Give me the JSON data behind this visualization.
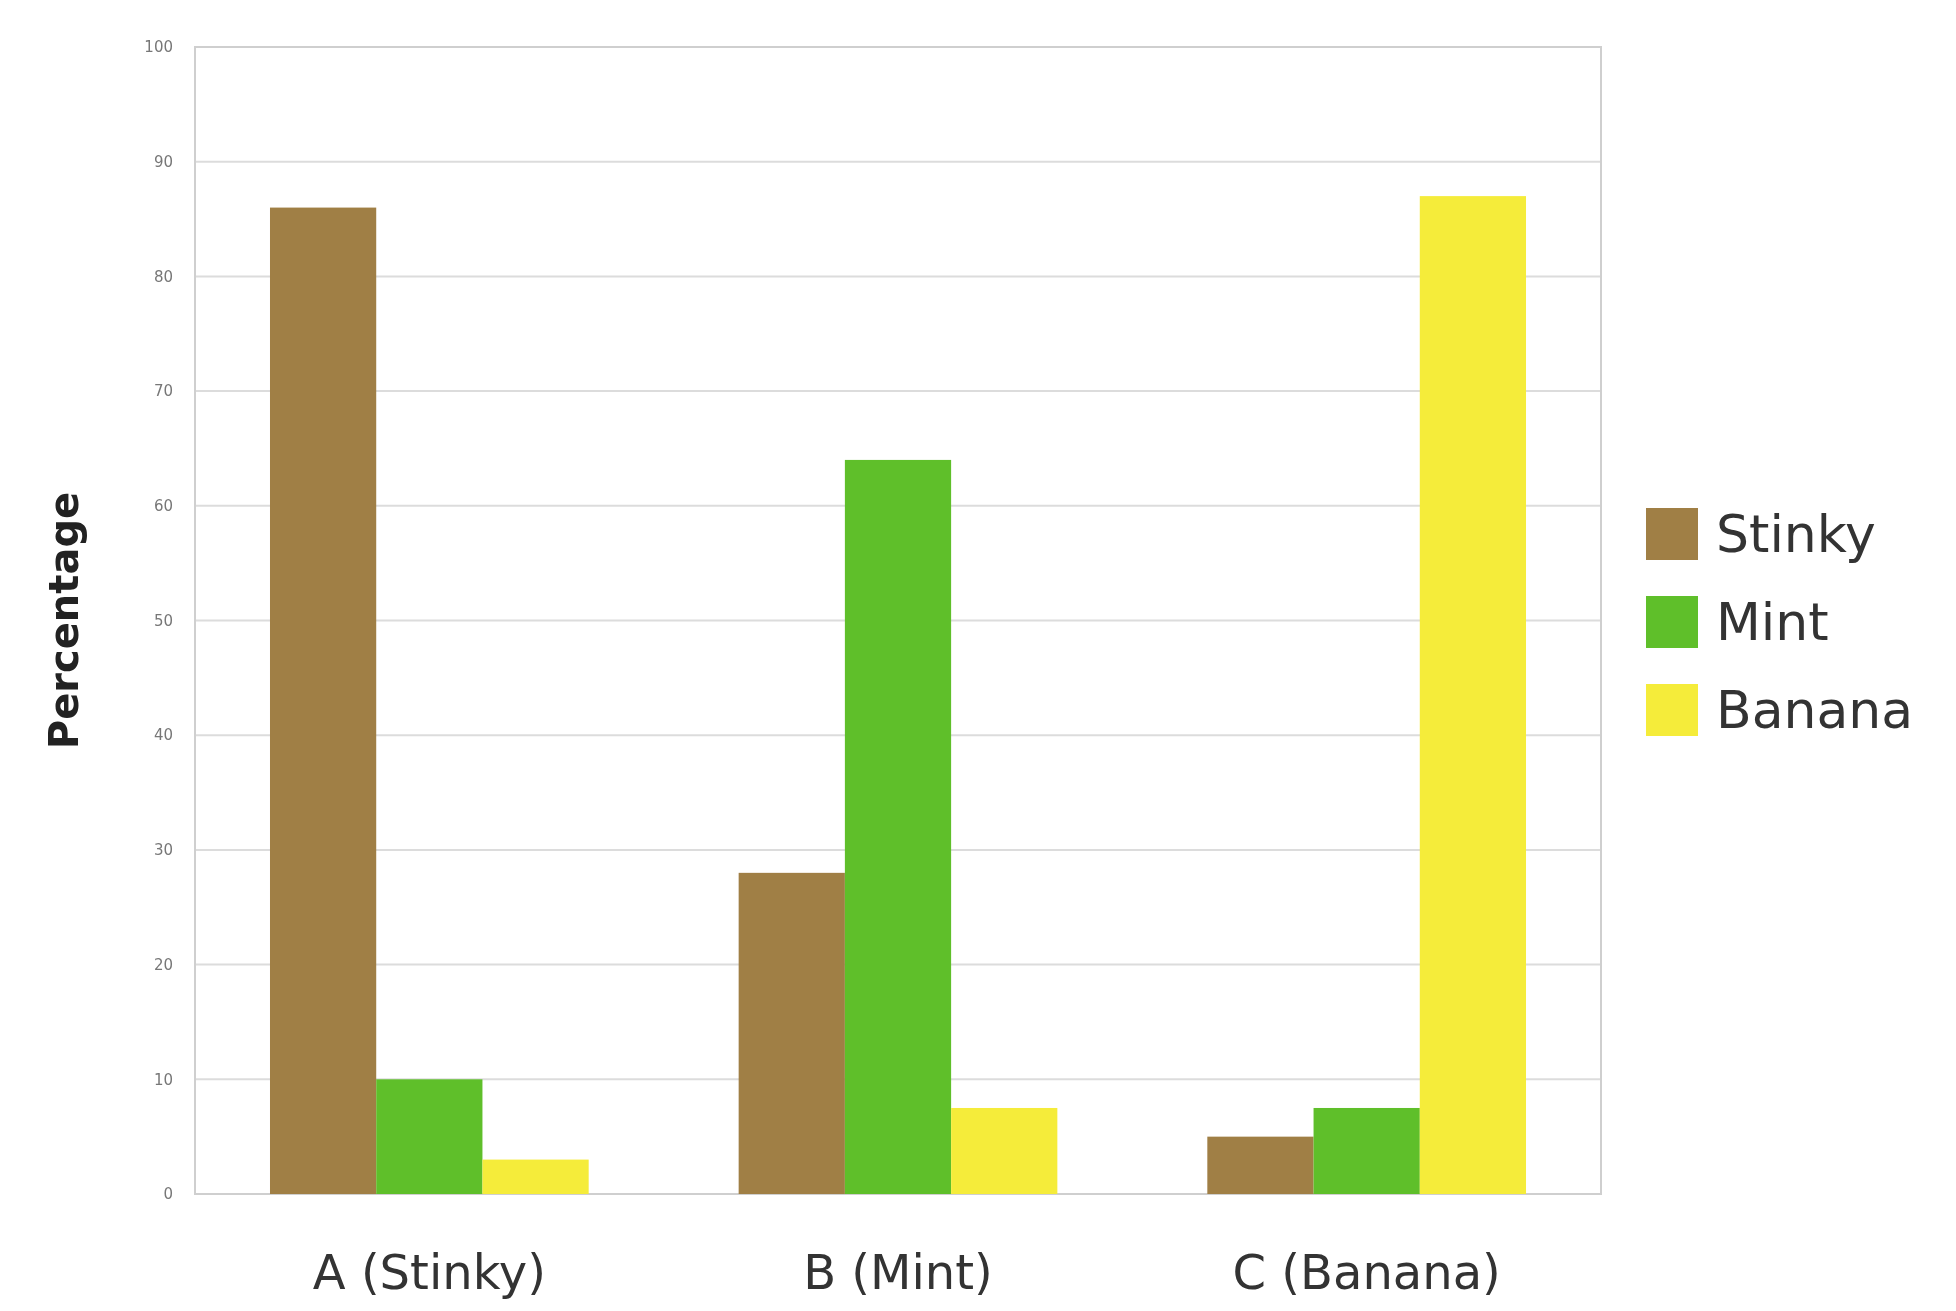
{
  "chart_data": {
    "type": "bar",
    "ylabel": "Percentage",
    "categories": [
      "A (Stinky)",
      "B (Mint)",
      "C (Banana)"
    ],
    "series": [
      {
        "name": "Stinky",
        "color": "#a07f45",
        "values": [
          86,
          28,
          5
        ]
      },
      {
        "name": "Mint",
        "color": "#5fbf2a",
        "values": [
          10,
          64,
          7.5
        ]
      },
      {
        "name": "Banana",
        "color": "#f5ec3a",
        "values": [
          3,
          7.5,
          87
        ]
      }
    ],
    "ylim": [
      0,
      100
    ],
    "yticks": [
      0,
      10,
      20,
      30,
      40,
      50,
      60,
      70,
      80,
      90,
      100
    ],
    "grid": "y",
    "legend": "right"
  }
}
